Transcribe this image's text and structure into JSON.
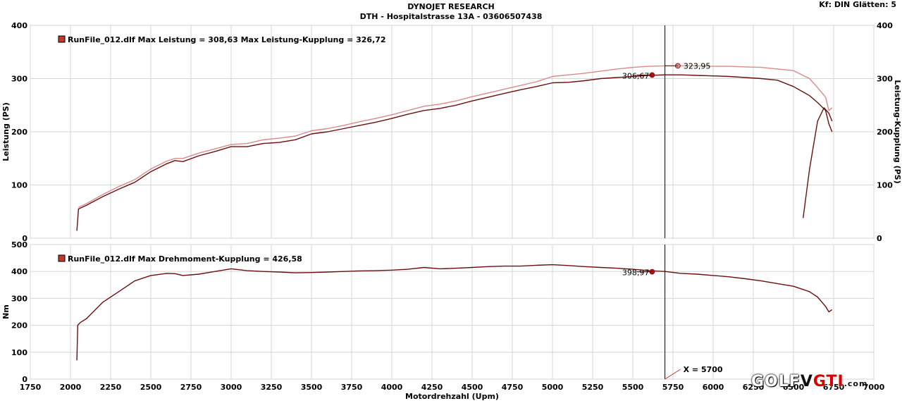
{
  "header": {
    "title": "DYNOJET RESEARCH",
    "subtitle": "DTH - Hospitalstrasse 13A - 03606507438",
    "settings": "Kf: DIN  Glätten: 5"
  },
  "logo": {
    "part1": "GOLF",
    "part2": "V",
    "part3": "GTI",
    "part4": ".com"
  },
  "colors": {
    "power": "#6b0f0f",
    "power_clutch": "#d98a8a",
    "torque": "#6b0f0f",
    "cursor": "#000000"
  },
  "chart_data": [
    {
      "type": "line",
      "legend": "RunFile_012.dlf Max Leistung = 308,63     Max Leistung-Kupplung = 326,72",
      "ylabel": "Leistung (PS)",
      "ylabel_right": "Leistung-Kupplung (PS)",
      "ylim": [
        0,
        400
      ],
      "yticks": [
        0,
        100,
        200,
        300,
        400
      ],
      "grid": true,
      "series": [
        {
          "role": "power",
          "x": [
            2040,
            2050,
            2100,
            2200,
            2300,
            2400,
            2500,
            2600,
            2650,
            2700,
            2800,
            2900,
            3000,
            3100,
            3200,
            3300,
            3400,
            3500,
            3600,
            3700,
            3800,
            3900,
            4000,
            4100,
            4200,
            4300,
            4400,
            4500,
            4600,
            4700,
            4800,
            4900,
            5000,
            5100,
            5200,
            5300,
            5400,
            5500,
            5600,
            5700,
            5800,
            5900,
            6000,
            6100,
            6200,
            6300,
            6400,
            6500,
            6600,
            6650,
            6700,
            6720,
            6740
          ],
          "y": [
            14,
            55,
            62,
            78,
            92,
            105,
            125,
            140,
            146,
            144,
            155,
            163,
            172,
            172,
            178,
            180,
            185,
            196,
            200,
            206,
            212,
            218,
            225,
            233,
            240,
            244,
            250,
            258,
            265,
            272,
            279,
            285,
            292,
            293,
            296,
            300,
            302,
            304,
            306,
            307,
            307,
            306,
            305,
            304,
            302,
            300,
            297,
            285,
            268,
            255,
            240,
            215,
            200
          ]
        },
        {
          "role": "power_clutch",
          "x": [
            2050,
            2100,
            2200,
            2300,
            2400,
            2500,
            2600,
            2650,
            2700,
            2800,
            2900,
            3000,
            3100,
            3200,
            3300,
            3400,
            3500,
            3600,
            3700,
            3800,
            3900,
            4000,
            4100,
            4200,
            4300,
            4400,
            4500,
            4600,
            4700,
            4800,
            4900,
            5000,
            5100,
            5200,
            5300,
            5400,
            5500,
            5600,
            5700,
            5800,
            5900,
            6000,
            6100,
            6200,
            6300,
            6400,
            6500,
            6600,
            6650,
            6700,
            6720,
            6740
          ],
          "y": [
            58,
            65,
            82,
            97,
            110,
            130,
            145,
            150,
            150,
            160,
            168,
            176,
            178,
            185,
            188,
            192,
            202,
            206,
            212,
            219,
            225,
            232,
            240,
            248,
            252,
            258,
            266,
            273,
            280,
            287,
            294,
            304,
            307,
            310,
            314,
            318,
            321,
            323,
            324,
            324,
            324,
            323,
            323,
            322,
            321,
            318,
            315,
            300,
            283,
            265,
            240,
            245
          ]
        },
        {
          "role": "drop",
          "x": [
            6560,
            6600,
            6650,
            6690,
            6720,
            6740
          ],
          "y": [
            38,
            130,
            220,
            245,
            235,
            220
          ]
        }
      ],
      "annotations": [
        {
          "x": 5620,
          "y": 306.67,
          "label": "306,67",
          "role": "power"
        },
        {
          "x": 5780,
          "y": 323.95,
          "label": "323,95",
          "role": "power_clutch"
        }
      ]
    },
    {
      "type": "line",
      "legend": "RunFile_012.dlf Max Drehmoment-Kupplung = 426,58",
      "xlabel": "Motordrehzahl (Upm)",
      "ylabel": "Nm",
      "xlim": [
        1750,
        7000
      ],
      "xticks": [
        1750,
        2000,
        2250,
        2500,
        2750,
        3000,
        3250,
        3500,
        3750,
        4000,
        4250,
        4500,
        4750,
        5000,
        5250,
        5500,
        5750,
        6000,
        6250,
        6500,
        6750,
        7000
      ],
      "ylim": [
        0,
        500
      ],
      "yticks": [
        0,
        100,
        200,
        300,
        400,
        500
      ],
      "grid": true,
      "series": [
        {
          "role": "torque",
          "x": [
            2040,
            2045,
            2060,
            2100,
            2150,
            2200,
            2300,
            2400,
            2500,
            2600,
            2650,
            2700,
            2800,
            2900,
            3000,
            3100,
            3200,
            3300,
            3400,
            3500,
            3600,
            3700,
            3800,
            3900,
            4000,
            4100,
            4200,
            4300,
            4400,
            4500,
            4600,
            4700,
            4800,
            4900,
            5000,
            5100,
            5200,
            5300,
            5400,
            5500,
            5600,
            5700,
            5800,
            5900,
            6000,
            6100,
            6200,
            6300,
            6400,
            6500,
            6600,
            6650,
            6700,
            6720,
            6740
          ],
          "y": [
            70,
            200,
            210,
            225,
            255,
            285,
            325,
            365,
            385,
            393,
            392,
            385,
            390,
            400,
            410,
            403,
            400,
            398,
            395,
            396,
            398,
            400,
            402,
            403,
            405,
            408,
            415,
            410,
            412,
            415,
            418,
            420,
            420,
            423,
            425,
            422,
            418,
            415,
            412,
            408,
            403,
            400,
            393,
            390,
            385,
            380,
            373,
            365,
            355,
            345,
            325,
            305,
            270,
            250,
            258
          ]
        }
      ],
      "annotations": [
        {
          "x": 5620,
          "y": 398.97,
          "label": "398,97",
          "role": "torque"
        }
      ]
    }
  ],
  "cursor": {
    "x": 5700,
    "label": "X = 5700"
  }
}
